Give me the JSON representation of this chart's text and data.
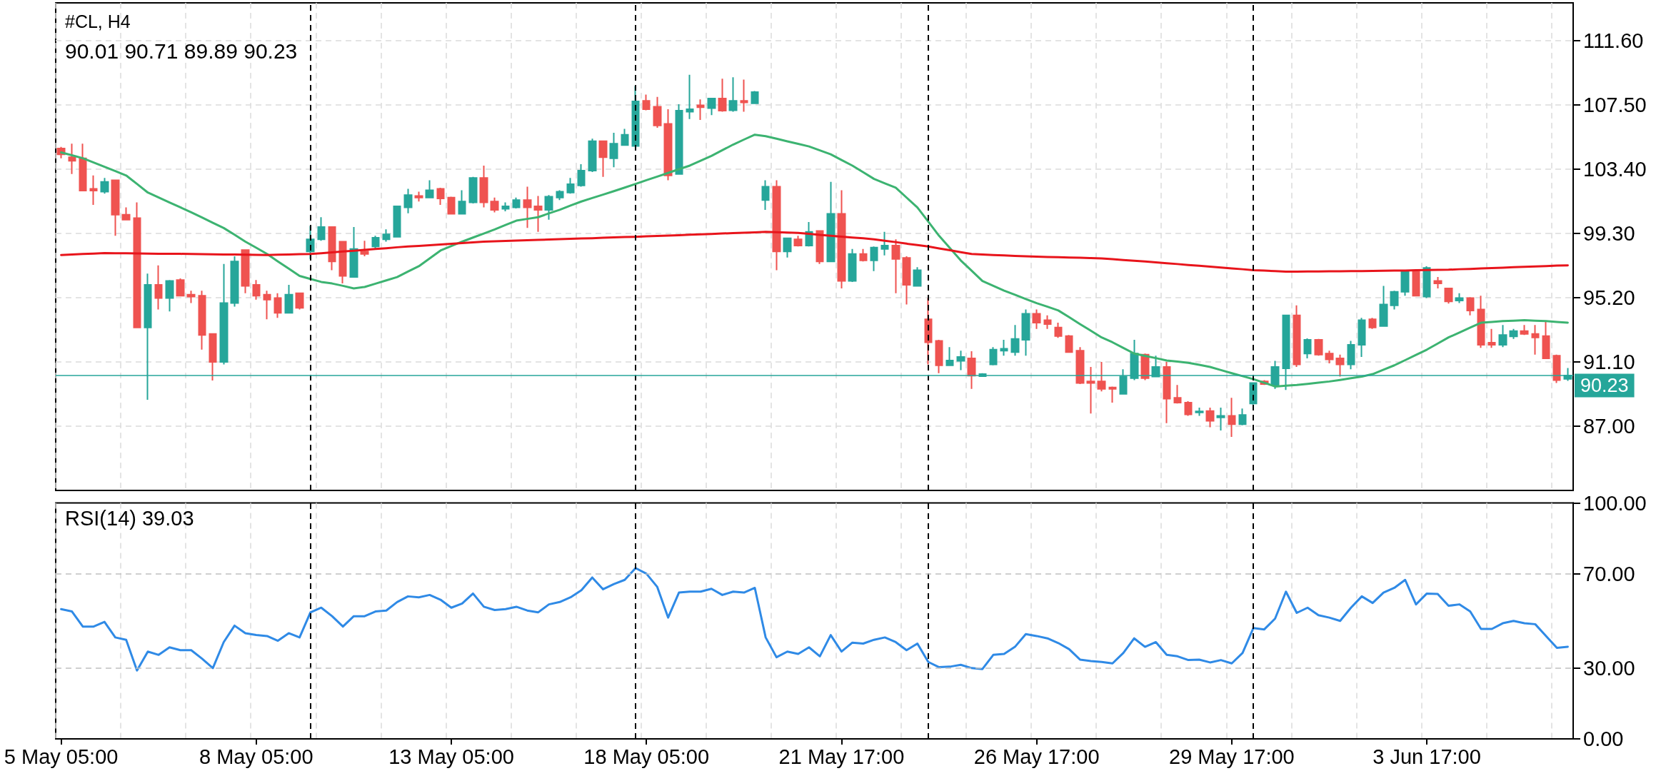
{
  "chart_data": [
    {
      "type": "candlestick",
      "title": "#CL, H4",
      "subtitle": "90.01 90.71 89.89 90.23",
      "ylim": [
        82.9,
        114.0
      ],
      "grid": true,
      "tick_labels": "y",
      "categories": [
        null,
        null,
        null,
        null,
        null,
        null,
        null,
        null,
        null,
        null,
        null,
        null,
        null,
        null,
        null,
        null,
        null,
        null,
        null,
        null,
        null,
        null,
        null,
        null,
        null,
        null,
        null,
        null,
        null,
        null,
        null,
        null,
        null,
        null,
        null,
        null,
        null,
        null,
        null,
        null,
        null,
        null,
        null,
        null,
        null,
        null,
        null,
        null,
        null,
        null,
        null,
        null,
        null,
        null,
        null,
        null,
        null,
        null,
        null,
        null,
        null,
        null,
        null,
        null,
        null,
        null,
        null,
        null,
        null,
        null,
        null,
        null,
        null,
        null,
        null,
        null,
        null,
        null,
        null,
        null,
        null,
        null,
        null,
        null,
        null,
        null,
        null,
        null,
        null,
        null,
        null,
        null,
        null,
        null,
        null,
        null,
        null,
        null,
        null,
        null,
        null,
        null,
        null,
        null,
        null,
        null,
        null,
        null,
        null,
        null,
        null,
        null,
        null,
        null,
        null,
        null,
        null,
        null,
        null,
        null,
        null,
        null,
        null,
        null,
        null,
        null,
        null,
        null,
        null,
        null,
        null,
        null,
        null,
        null,
        null,
        null,
        null,
        null,
        null,
        null
      ],
      "yticks": [
        {
          "value": 87,
          "label": "87.00"
        },
        {
          "value": 91.1,
          "label": "91.10"
        },
        {
          "value": 95.2,
          "label": "95.20"
        },
        {
          "value": 99.3,
          "label": "99.30"
        },
        {
          "value": 103.4,
          "label": "103.40"
        },
        {
          "value": 107.5,
          "label": "107.50"
        },
        {
          "value": 111.6,
          "label": "111.60"
        }
      ],
      "ref_lines": [
        {
          "axis": "y",
          "value": 90.23,
          "label": "90.23",
          "color": "#26a69a",
          "line_style": "solid"
        }
      ],
      "series": [
        {
          "ohlc": [
            [
              104.71,
              104.81,
              104.09,
              104.34
            ],
            [
              104.15,
              105.02,
              103.08,
              103.93
            ],
            [
              104.09,
              105.02,
              102.02,
              102.02
            ],
            [
              102.14,
              102.99,
              101.11,
              102.02
            ],
            [
              101.96,
              102.83,
              101.83,
              102.58
            ],
            [
              102.68,
              102.68,
              99.14,
              100.49
            ],
            [
              100.49,
              100.95,
              100.17,
              100.17
            ],
            [
              100.27,
              101.27,
              93.29,
              93.29
            ],
            [
              93.29,
              96.73,
              88.68,
              96.01
            ],
            [
              96.01,
              97.26,
              94.44,
              95.17
            ],
            [
              95.17,
              96.32,
              94.32,
              96.26
            ],
            [
              96.32,
              96.42,
              95.32,
              95.32
            ],
            [
              95.39,
              95.64,
              94.85,
              95.26
            ],
            [
              95.32,
              95.64,
              91.88,
              92.82
            ],
            [
              92.88,
              92.88,
              89.91,
              91.1
            ],
            [
              91.1,
              97.35,
              90.94,
              94.85
            ],
            [
              94.85,
              97.83,
              94.63,
              97.51
            ],
            [
              98.23,
              98.23,
              95.48,
              95.95
            ],
            [
              96.01,
              96.32,
              95.07,
              95.32
            ],
            [
              95.39,
              95.64,
              93.82,
              95.07
            ],
            [
              95.17,
              95.48,
              93.91,
              94.23
            ],
            [
              94.23,
              96.01,
              94.23,
              95.39
            ],
            [
              95.48,
              95.48,
              94.44,
              94.54
            ],
            [
              98.14,
              99.77,
              97.67,
              98.92
            ],
            [
              98.92,
              100.33,
              98.83,
              99.7
            ],
            [
              99.7,
              99.7,
              96.95,
              97.51
            ],
            [
              98.77,
              98.77,
              96.1,
              96.58
            ],
            [
              96.51,
              99.7,
              96.51,
              98.3
            ],
            [
              98.14,
              98.83,
              97.83,
              97.98
            ],
            [
              98.46,
              99.14,
              98.3,
              99.02
            ],
            [
              98.92,
              99.55,
              98.77,
              99.24
            ],
            [
              99.08,
              101.02,
              99.08,
              101.02
            ],
            [
              100.95,
              102.14,
              100.58,
              101.74
            ],
            [
              101.68,
              101.96,
              101.33,
              101.58
            ],
            [
              101.58,
              102.68,
              101.58,
              102.05
            ],
            [
              102.14,
              102.21,
              101.11,
              101.52
            ],
            [
              101.58,
              101.64,
              100.55,
              100.55
            ],
            [
              100.55,
              102.05,
              100.55,
              101.33
            ],
            [
              101.27,
              102.9,
              101.2,
              102.83
            ],
            [
              102.83,
              103.62,
              100.95,
              101.27
            ],
            [
              101.33,
              101.58,
              100.64,
              100.8
            ],
            [
              100.86,
              101.27,
              100.7,
              101.02
            ],
            [
              100.95,
              101.58,
              100.89,
              101.42
            ],
            [
              101.42,
              102.27,
              99.64,
              100.95
            ],
            [
              101.02,
              101.68,
              99.39,
              100.8
            ],
            [
              100.8,
              101.74,
              100.17,
              101.64
            ],
            [
              101.58,
              102.05,
              101.42,
              101.96
            ],
            [
              101.9,
              102.83,
              101.83,
              102.43
            ],
            [
              102.36,
              103.71,
              102.27,
              103.3
            ],
            [
              103.3,
              105.34,
              103.21,
              105.18
            ],
            [
              105.18,
              105.18,
              102.9,
              104.15
            ],
            [
              104.09,
              105.71,
              103.52,
              105.02
            ],
            [
              104.93,
              105.96,
              104.93,
              105.59
            ],
            [
              104.87,
              108.69,
              104.87,
              107.72
            ],
            [
              107.75,
              108.15,
              107.15,
              107.22
            ],
            [
              107.37,
              108.0,
              106.03,
              106.18
            ],
            [
              106.28,
              107.22,
              102.68,
              102.99
            ],
            [
              103.08,
              107.53,
              103.08,
              107.12
            ],
            [
              107.06,
              109.41,
              106.59,
              107.22
            ],
            [
              107.47,
              107.84,
              106.53,
              107.34
            ],
            [
              107.28,
              107.9,
              106.84,
              107.9
            ],
            [
              107.9,
              109.16,
              107.06,
              107.12
            ],
            [
              107.15,
              109.25,
              107.06,
              107.75
            ],
            [
              107.75,
              109.1,
              107.06,
              107.65
            ],
            [
              107.59,
              108.38,
              107.59,
              108.31
            ],
            [
              101.42,
              102.68,
              100.8,
              102.27
            ],
            [
              102.27,
              102.68,
              96.95,
              98.14
            ],
            [
              98.14,
              98.99,
              97.76,
              98.99
            ],
            [
              98.92,
              99.14,
              98.46,
              98.52
            ],
            [
              98.52,
              100.02,
              98.46,
              99.39
            ],
            [
              99.45,
              99.45,
              97.35,
              97.51
            ],
            [
              97.51,
              102.58,
              97.51,
              100.55
            ],
            [
              100.55,
              102.05,
              95.79,
              96.26
            ],
            [
              96.26,
              98.3,
              96.2,
              97.98
            ],
            [
              97.98,
              98.3,
              97.51,
              97.57
            ],
            [
              97.57,
              98.46,
              96.89,
              98.39
            ],
            [
              98.3,
              99.39,
              97.89,
              98.52
            ],
            [
              98.52,
              98.92,
              95.48,
              97.67
            ],
            [
              97.73,
              97.83,
              94.76,
              96.01
            ],
            [
              95.95,
              97.14,
              95.95,
              96.95
            ],
            [
              93.82,
              95.17,
              90.94,
              92.35
            ],
            [
              92.44,
              92.51,
              90.38,
              90.88
            ],
            [
              90.88,
              92.04,
              90.88,
              91.19
            ],
            [
              91.16,
              91.81,
              90.57,
              91.41
            ],
            [
              91.32,
              91.78,
              89.38,
              90.22
            ],
            [
              90.19,
              90.38,
              90.19,
              90.32
            ],
            [
              90.94,
              92.04,
              90.88,
              91.88
            ],
            [
              91.81,
              92.51,
              91.5,
              91.94
            ],
            [
              91.72,
              93.45,
              91.5,
              92.57
            ],
            [
              92.51,
              94.44,
              91.5,
              94.17
            ],
            [
              94.17,
              94.44,
              93.2,
              93.6
            ],
            [
              93.76,
              94.07,
              93.2,
              93.51
            ],
            [
              93.29,
              93.6,
              92.63,
              92.75
            ],
            [
              92.75,
              92.82,
              91.72,
              91.72
            ],
            [
              91.81,
              92.04,
              89.69,
              89.75
            ],
            [
              89.85,
              90.78,
              87.81,
              89.75
            ],
            [
              89.85,
              91.1,
              89.22,
              89.38
            ],
            [
              89.47,
              89.53,
              88.5,
              89.38
            ],
            [
              89.06,
              90.63,
              89.06,
              90.16
            ],
            [
              90.06,
              92.51,
              89.94,
              91.63
            ],
            [
              91.56,
              91.63,
              89.94,
              90.06
            ],
            [
              90.16,
              91.5,
              90.16,
              90.78
            ],
            [
              90.78,
              91.1,
              87.19,
              88.75
            ],
            [
              88.81,
              89.63,
              88.44,
              88.5
            ],
            [
              88.5,
              88.59,
              87.66,
              87.75
            ],
            [
              87.87,
              88.18,
              87.66,
              87.94
            ],
            [
              87.97,
              88.18,
              86.93,
              87.34
            ],
            [
              87.56,
              88.18,
              86.72,
              87.66
            ],
            [
              87.66,
              88.81,
              86.31,
              87.12
            ],
            [
              87.12,
              88.12,
              87.06,
              87.72
            ],
            [
              88.44,
              89.75,
              88.37,
              89.75
            ],
            [
              89.85,
              89.94,
              89.63,
              89.69
            ],
            [
              89.63,
              91.16,
              89.38,
              90.78
            ],
            [
              90.69,
              94.07,
              89.31,
              94.07
            ],
            [
              94.07,
              94.7,
              90.78,
              90.94
            ],
            [
              91.63,
              92.6,
              91.32,
              92.51
            ],
            [
              92.51,
              92.57,
              91.5,
              91.56
            ],
            [
              91.63,
              91.81,
              91.0,
              91.25
            ],
            [
              91.32,
              91.56,
              90.16,
              90.94
            ],
            [
              90.94,
              92.44,
              90.63,
              92.19
            ],
            [
              92.19,
              93.91,
              91.41,
              93.76
            ],
            [
              93.82,
              93.91,
              93.2,
              93.29
            ],
            [
              93.38,
              95.95,
              93.38,
              94.76
            ],
            [
              94.7,
              95.64,
              94.44,
              95.57
            ],
            [
              95.57,
              96.89,
              95.32,
              96.83
            ],
            [
              96.83,
              96.89,
              95.32,
              95.32
            ],
            [
              95.26,
              97.2,
              95.17,
              97.1
            ],
            [
              96.26,
              96.51,
              95.79,
              96.1
            ],
            [
              95.79,
              95.79,
              94.82,
              94.95
            ],
            [
              95.01,
              95.48,
              94.85,
              95.17
            ],
            [
              95.17,
              95.23,
              94.07,
              94.38
            ],
            [
              94.44,
              95.32,
              92.0,
              92.19
            ],
            [
              92.32,
              93.2,
              92.0,
              92.19
            ],
            [
              92.19,
              93.45,
              92.04,
              92.82
            ],
            [
              92.72,
              93.2,
              92.57,
              93.07
            ],
            [
              93.07,
              93.45,
              92.82,
              92.88
            ],
            [
              92.88,
              93.45,
              91.56,
              92.66
            ],
            [
              92.75,
              93.7,
              91.32,
              91.32
            ],
            [
              91.5,
              91.56,
              89.75,
              89.94
            ],
            [
              90.01,
              90.71,
              89.89,
              90.23
            ]
          ],
          "colors": [
            "#ef5350",
            "#ef5350",
            "#ef5350",
            "#ef5350",
            "#26a69a",
            "#ef5350",
            "#ef5350",
            "#ef5350",
            "#26a69a",
            "#ef5350",
            "#26a69a",
            "#ef5350",
            "#ef5350",
            "#ef5350",
            "#ef5350",
            "#26a69a",
            "#26a69a",
            "#ef5350",
            "#ef5350",
            "#ef5350",
            "#ef5350",
            "#26a69a",
            "#ef5350",
            "#26a69a",
            "#26a69a",
            "#ef5350",
            "#ef5350",
            "#26a69a",
            "#ef5350",
            "#26a69a",
            "#26a69a",
            "#26a69a",
            "#26a69a",
            "#ef5350",
            "#26a69a",
            "#ef5350",
            "#ef5350",
            "#26a69a",
            "#26a69a",
            "#ef5350",
            "#ef5350",
            "#26a69a",
            "#26a69a",
            "#ef5350",
            "#ef5350",
            "#26a69a",
            "#26a69a",
            "#26a69a",
            "#26a69a",
            "#26a69a",
            "#ef5350",
            "#26a69a",
            "#26a69a",
            "#26a69a",
            "#ef5350",
            "#ef5350",
            "#ef5350",
            "#26a69a",
            "#26a69a",
            "#ef5350",
            "#26a69a",
            "#ef5350",
            "#26a69a",
            "#ef5350",
            "#26a69a",
            "#26a69a",
            "#ef5350",
            "#26a69a",
            "#ef5350",
            "#26a69a",
            "#ef5350",
            "#26a69a",
            "#ef5350",
            "#26a69a",
            "#ef5350",
            "#26a69a",
            "#26a69a",
            "#ef5350",
            "#ef5350",
            "#26a69a",
            "#ef5350",
            "#ef5350",
            "#26a69a",
            "#26a69a",
            "#ef5350",
            "#26a69a",
            "#26a69a",
            "#26a69a",
            "#26a69a",
            "#26a69a",
            "#ef5350",
            "#ef5350",
            "#ef5350",
            "#ef5350",
            "#ef5350",
            "#ef5350",
            "#ef5350",
            "#ef5350",
            "#26a69a",
            "#26a69a",
            "#ef5350",
            "#26a69a",
            "#ef5350",
            "#ef5350",
            "#ef5350",
            "#26a69a",
            "#ef5350",
            "#26a69a",
            "#ef5350",
            "#26a69a",
            "#26a69a",
            "#ef5350",
            "#26a69a",
            "#26a69a",
            "#ef5350",
            "#26a69a",
            "#ef5350",
            "#ef5350",
            "#ef5350",
            "#26a69a",
            "#26a69a",
            "#ef5350",
            "#26a69a",
            "#26a69a",
            "#26a69a",
            "#ef5350",
            "#26a69a",
            "#ef5350",
            "#ef5350",
            "#26a69a",
            "#ef5350",
            "#ef5350",
            "#ef5350",
            "#26a69a",
            "#26a69a",
            "#ef5350",
            "#ef5350",
            "#ef5350",
            "#ef5350",
            "#26a69a"
          ]
        },
        {
          "type": "line",
          "color": "#3cb371",
          "values": [
            104.46,
            104.28,
            104.09,
            103.82,
            103.54,
            103.27,
            102.99,
            102.45,
            101.9,
            101.59,
            101.27,
            100.96,
            100.64,
            100.31,
            99.97,
            99.64,
            99.21,
            98.77,
            98.38,
            97.98,
            97.51,
            97.05,
            96.58,
            96.39,
            96.2,
            96.1,
            95.95,
            95.79,
            95.88,
            96.09,
            96.3,
            96.51,
            96.86,
            97.2,
            97.7,
            98.2,
            98.49,
            98.77,
            99.03,
            99.29,
            99.55,
            99.83,
            100.11,
            100.22,
            100.33,
            100.57,
            100.8,
            101.07,
            101.33,
            101.55,
            101.77,
            101.99,
            102.22,
            102.45,
            102.69,
            102.92,
            103.15,
            103.39,
            103.62,
            103.93,
            104.24,
            104.6,
            104.96,
            105.28,
            105.59,
            105.5,
            105.34,
            105.17,
            105.01,
            104.84,
            104.59,
            104.34,
            103.98,
            103.62,
            103.2,
            102.77,
            102.49,
            102.21,
            101.58,
            100.95,
            100.05,
            99.14,
            98.36,
            97.57,
            96.92,
            96.26,
            95.95,
            95.64,
            95.38,
            95.11,
            94.85,
            94.62,
            94.38,
            93.95,
            93.51,
            93.09,
            92.66,
            92.35,
            91.99,
            91.63,
            91.48,
            91.34,
            91.19,
            91.12,
            91.04,
            90.91,
            90.78,
            90.58,
            90.38,
            90.19,
            90.0,
            89.77,
            89.53,
            89.58,
            89.63,
            89.7,
            89.78,
            89.85,
            89.95,
            90.06,
            90.16,
            90.32,
            90.6,
            90.88,
            91.21,
            91.55,
            91.88,
            92.27,
            92.66,
            92.97,
            93.29,
            93.6,
            93.65,
            93.7,
            93.73,
            93.76,
            93.73,
            93.7,
            93.65,
            93.6
          ]
        },
        {
          "type": "line",
          "color": "#e8141b",
          "values": [
            97.92,
            97.95,
            97.98,
            98.01,
            98.04,
            98.03,
            98.03,
            98.02,
            98.01,
            98.0,
            97.99,
            97.99,
            97.98,
            97.97,
            97.96,
            97.95,
            97.95,
            97.94,
            97.93,
            97.92,
            97.94,
            97.95,
            97.97,
            97.98,
            98.03,
            98.09,
            98.14,
            98.19,
            98.25,
            98.3,
            98.35,
            98.41,
            98.46,
            98.5,
            98.54,
            98.59,
            98.63,
            98.68,
            98.72,
            98.77,
            98.79,
            98.81,
            98.84,
            98.86,
            98.88,
            98.9,
            98.93,
            98.95,
            98.97,
            98.99,
            99.02,
            99.04,
            99.06,
            99.08,
            99.11,
            99.13,
            99.16,
            99.18,
            99.21,
            99.23,
            99.26,
            99.29,
            99.31,
            99.34,
            99.36,
            99.39,
            99.37,
            99.35,
            99.33,
            99.27,
            99.2,
            99.14,
            99.09,
            99.03,
            98.98,
            98.92,
            98.83,
            98.74,
            98.64,
            98.55,
            98.46,
            98.34,
            98.22,
            98.1,
            97.98,
            97.95,
            97.92,
            97.89,
            97.86,
            97.83,
            97.81,
            97.79,
            97.78,
            97.76,
            97.74,
            97.72,
            97.7,
            97.65,
            97.6,
            97.55,
            97.5,
            97.45,
            97.39,
            97.34,
            97.28,
            97.23,
            97.17,
            97.12,
            97.06,
            97.01,
            96.95,
            96.92,
            96.89,
            96.86,
            96.86,
            96.87,
            96.87,
            96.88,
            96.88,
            96.89,
            96.89,
            96.9,
            96.91,
            96.92,
            96.93,
            96.95,
            96.96,
            96.97,
            96.98,
            97.01,
            97.03,
            97.06,
            97.08,
            97.11,
            97.14,
            97.16,
            97.19,
            97.21,
            97.24,
            97.26
          ]
        }
      ]
    },
    {
      "type": "line",
      "title": "RSI(14) 39.03",
      "ylim": [
        0,
        100
      ],
      "grid": "x",
      "categories": [
        "5 May 05:00",
        null,
        null,
        null,
        null,
        null,
        null,
        null,
        null,
        null,
        null,
        null,
        null,
        null,
        null,
        null,
        null,
        null,
        "8 May 05:00",
        null,
        null,
        null,
        null,
        null,
        null,
        null,
        null,
        null,
        null,
        null,
        null,
        null,
        null,
        null,
        null,
        null,
        "13 May 05:00",
        null,
        null,
        null,
        null,
        null,
        null,
        null,
        null,
        null,
        null,
        null,
        null,
        null,
        null,
        null,
        null,
        null,
        "18 May 05:00",
        null,
        null,
        null,
        null,
        null,
        null,
        null,
        null,
        null,
        null,
        null,
        null,
        null,
        null,
        null,
        null,
        null,
        "21 May 17:00",
        null,
        null,
        null,
        null,
        null,
        null,
        null,
        null,
        null,
        null,
        null,
        null,
        null,
        null,
        null,
        null,
        null,
        "26 May 17:00",
        null,
        null,
        null,
        null,
        null,
        null,
        null,
        null,
        null,
        null,
        null,
        null,
        null,
        null,
        null,
        null,
        null,
        "29 May 17:00",
        null,
        null,
        null,
        null,
        null,
        null,
        null,
        null,
        null,
        null,
        null,
        null,
        null,
        null,
        null,
        null,
        null,
        "3 Jun 17:00",
        null,
        null,
        null,
        null,
        null,
        null,
        null,
        null,
        null,
        null,
        null,
        null,
        null
      ],
      "yticks": [
        {
          "value": 0,
          "label": "0.00"
        },
        {
          "value": 30,
          "label": "30.00"
        },
        {
          "value": 70,
          "label": "70.00"
        },
        {
          "value": 100,
          "label": "100.00"
        }
      ],
      "ref_lines": [
        {
          "axis": "y",
          "value": 30,
          "color": "#c0c0c0",
          "line_style": "dashed"
        },
        {
          "axis": "y",
          "value": 70,
          "color": "#c0c0c0",
          "line_style": "dashed"
        }
      ],
      "series": [
        {
          "color": "#2f8ae6",
          "values": [
            55,
            54,
            47.6,
            47.6,
            49.6,
            43,
            42,
            29,
            37,
            35.6,
            38.8,
            37.6,
            37.6,
            34,
            30,
            41,
            48,
            44.8,
            44,
            43.6,
            41.6,
            44.8,
            43,
            53.6,
            55.6,
            52,
            47.6,
            52,
            52,
            54,
            54.4,
            58,
            60.4,
            60,
            61,
            59,
            55.6,
            57.4,
            61.6,
            56,
            54.6,
            55,
            56,
            54.4,
            53.6,
            57,
            58,
            60,
            63,
            68.4,
            63.4,
            65.6,
            67.4,
            72.4,
            70,
            64.4,
            51.4,
            62,
            62.4,
            62.4,
            63.6,
            61,
            62.4,
            62,
            64,
            43,
            34.6,
            37,
            36,
            38.8,
            35,
            44,
            37,
            40.8,
            40.4,
            42,
            43,
            41,
            37.6,
            40.4,
            32.6,
            30.4,
            30.6,
            31.4,
            30,
            29.6,
            35.6,
            36,
            39,
            44.4,
            43.6,
            42.6,
            40.6,
            38,
            33.6,
            33,
            32.6,
            32,
            36.4,
            42.6,
            39,
            41,
            35.6,
            35,
            33.4,
            33.6,
            32.4,
            33.4,
            32,
            36.4,
            47,
            46.4,
            51,
            62.4,
            53.4,
            55.6,
            52.4,
            51.4,
            50,
            55.6,
            60.4,
            57.6,
            62,
            64,
            67.4,
            57,
            61.6,
            61.4,
            56.4,
            57,
            54,
            46.6,
            46.6,
            49,
            50,
            49,
            48.6,
            43.6,
            38.6,
            39.03
          ]
        }
      ]
    }
  ]
}
